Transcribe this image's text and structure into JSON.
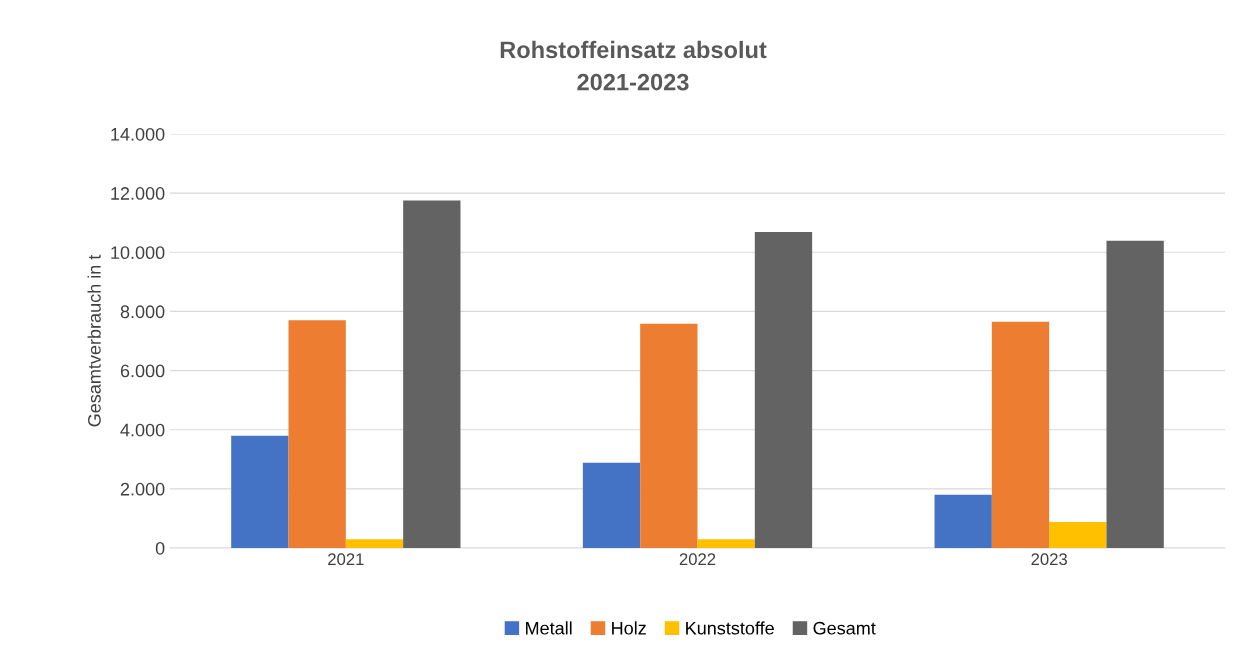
{
  "chart_data": {
    "type": "bar",
    "title": "Rohstoffeinsatz absolut\n2021-2023",
    "ylabel": "Gesamtverbrauch in t",
    "categories": [
      "2021",
      "2022",
      "2023"
    ],
    "series": [
      {
        "name": "Metall",
        "color": "#4472c4",
        "values": [
          3800,
          2880,
          1800
        ]
      },
      {
        "name": "Holz",
        "color": "#ed7d31",
        "values": [
          7700,
          7580,
          7650
        ]
      },
      {
        "name": "Kunststoffe",
        "color": "#ffc000",
        "values": [
          300,
          300,
          880
        ]
      },
      {
        "name": "Gesamt",
        "color": "#636363",
        "values": [
          11750,
          10690,
          10390
        ]
      }
    ],
    "ylim": [
      0,
      14000
    ],
    "yticks": [
      {
        "value": 0,
        "label": "0"
      },
      {
        "value": 2000,
        "label": "2.000"
      },
      {
        "value": 4000,
        "label": "4.000"
      },
      {
        "value": 6000,
        "label": "6.000"
      },
      {
        "value": 8000,
        "label": "8.000"
      },
      {
        "value": 10000,
        "label": "10.000"
      },
      {
        "value": 12000,
        "label": "12.000"
      },
      {
        "value": 14000,
        "label": "14.000"
      }
    ],
    "grid": "y",
    "legend": "bottom"
  }
}
